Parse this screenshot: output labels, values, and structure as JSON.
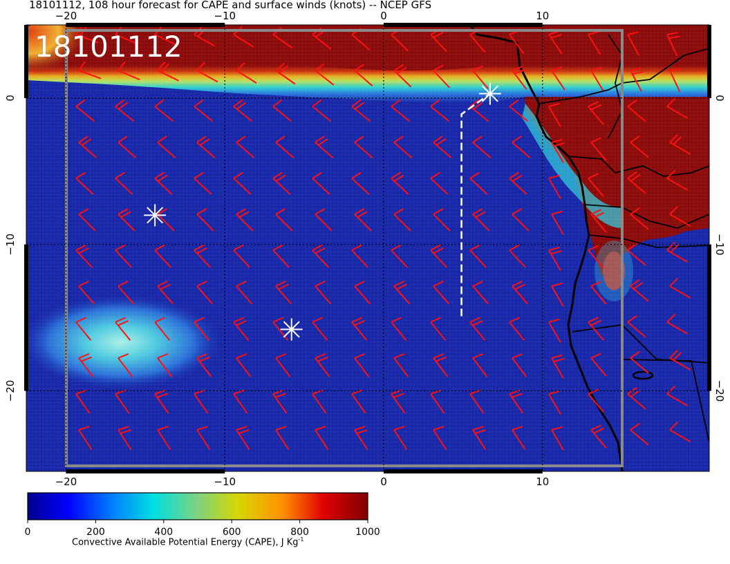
{
  "title": "18101112, 108 hour forecast for CAPE and surface winds (knots) -- NCEP GFS",
  "stamp": "18101112",
  "map": {
    "lon_range": [
      -22.5,
      20.5
    ],
    "lat_range": [
      -25.5,
      5
    ],
    "lon_ticks": [
      {
        "value": -20,
        "label": "−20"
      },
      {
        "value": -10,
        "label": "−10"
      },
      {
        "value": 0,
        "label": "0"
      },
      {
        "value": 10,
        "label": "10"
      }
    ],
    "lat_ticks": [
      {
        "value": 0,
        "label": "0"
      },
      {
        "value": -10,
        "label": "−10"
      },
      {
        "value": -20,
        "label": "−20"
      }
    ],
    "markers": [
      {
        "name": "marker-north",
        "lon": 6.7,
        "lat": 0.3
      },
      {
        "name": "marker-west",
        "lon": -14.4,
        "lat": -8.0
      },
      {
        "name": "marker-south",
        "lon": -5.8,
        "lat": -15.8
      }
    ],
    "track": [
      [
        4.9,
        -14.9
      ],
      [
        4.9,
        -1.1
      ],
      [
        6.7,
        0.3
      ]
    ]
  },
  "colorbar": {
    "min": 0,
    "max": 1000,
    "ticks": [
      {
        "value": 0,
        "label": "0"
      },
      {
        "value": 200,
        "label": "200"
      },
      {
        "value": 400,
        "label": "400"
      },
      {
        "value": 600,
        "label": "600"
      },
      {
        "value": 800,
        "label": "800"
      },
      {
        "value": 1000,
        "label": "1000"
      }
    ],
    "label_main": "Convective Available Potential Energy (CAPE), J Kg",
    "label_sup": "-1",
    "colors": [
      "#00008f",
      "#0000ff",
      "#0080ff",
      "#00e0e0",
      "#7fd27f",
      "#d7d700",
      "#ff9000",
      "#e00000",
      "#800000"
    ]
  },
  "colors": {
    "ocean": "#1727a8",
    "high_cape": "#8b0a0a",
    "barb": "#ff1010",
    "marker": "#ffffff"
  }
}
